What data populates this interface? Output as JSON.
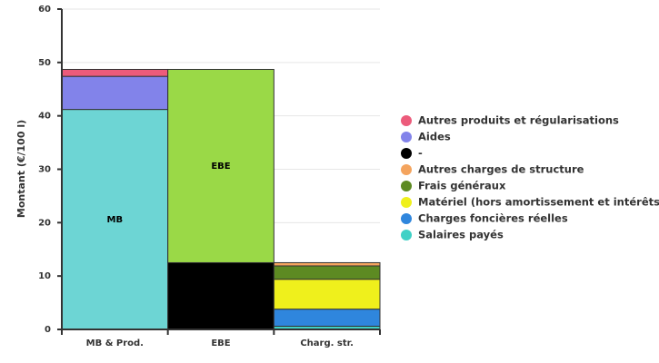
{
  "chart_data": {
    "type": "stacked_bar",
    "ylabel": "Montant (€/100 l)",
    "categories": [
      "MB & Prod.",
      "EBE",
      "Charg. str."
    ],
    "ylim": [
      0,
      60
    ],
    "yticks": [
      0,
      10,
      20,
      30,
      40,
      50,
      60
    ],
    "grid": true,
    "series": [
      {
        "name": "MB",
        "color": "#6dd5d4",
        "values": [
          41.2,
          null,
          null
        ],
        "legend": false
      },
      {
        "name": "Salaires payés",
        "color": "#3fd1c6",
        "values": [
          null,
          null,
          0.6
        ]
      },
      {
        "name": "Charges foncières réelles",
        "color": "#2f86dd",
        "values": [
          null,
          null,
          3.2
        ]
      },
      {
        "name": "Matériel (hors amortissement et intérêts)",
        "color": "#eff01c",
        "values": [
          null,
          null,
          5.6
        ]
      },
      {
        "name": "Frais généraux",
        "color": "#5d8a22",
        "values": [
          null,
          null,
          2.5
        ]
      },
      {
        "name": "Autres charges de structure",
        "color": "#f4a45e",
        "values": [
          null,
          null,
          0.6
        ]
      },
      {
        "name": "-",
        "color": "#000000",
        "values": [
          null,
          12.5,
          null
        ]
      },
      {
        "name": "EBE",
        "color": "#9ad947",
        "values": [
          null,
          36.2,
          null
        ],
        "legend": false
      },
      {
        "name": "Aides",
        "color": "#8283ea",
        "values": [
          6.2,
          null,
          null
        ]
      },
      {
        "name": "Autres produits et régularisations",
        "color": "#ec5b7b",
        "values": [
          1.3,
          null,
          null
        ]
      }
    ]
  }
}
